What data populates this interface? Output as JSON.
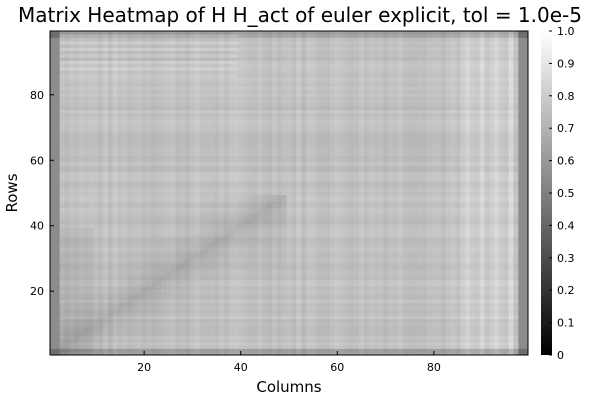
{
  "chart_data": {
    "type": "heatmap",
    "title": "Matrix Heatmap of H H_act of euler explicit, tol = 1.0e-5",
    "xlabel": "Columns",
    "ylabel": "Rows",
    "xlim": [
      1,
      99
    ],
    "ylim": [
      1,
      99
    ],
    "x_ticks": [
      20,
      40,
      60,
      80
    ],
    "y_ticks": [
      20,
      40,
      60,
      80
    ],
    "colorbar": {
      "ticks": [
        "0",
        "0.1",
        "0.2",
        "0.3",
        "0.4",
        "0.5",
        "0.6",
        "0.7",
        "0.8",
        "0.9",
        "1.0"
      ],
      "range": [
        0,
        1
      ],
      "colormap": "grays"
    },
    "matrix_summary": {
      "rows": 99,
      "cols": 99,
      "background_value": 0.76,
      "diagonal_value": 0.66,
      "edge_values": 0.55
    }
  }
}
